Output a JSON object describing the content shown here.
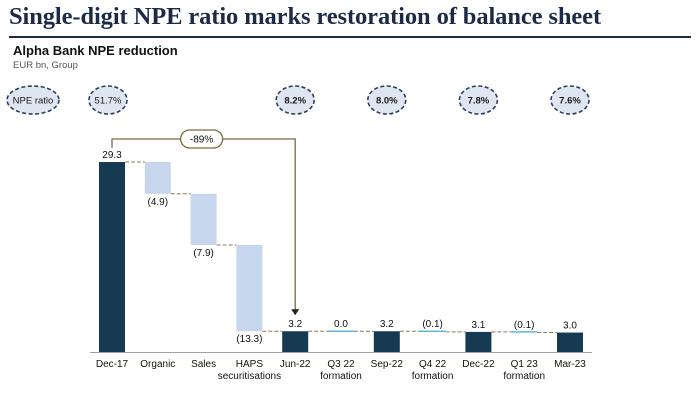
{
  "slide": {
    "title": "Single-digit NPE ratio marks restoration of balance sheet"
  },
  "chart_data": {
    "type": "bar",
    "subtype": "waterfall",
    "title": "Alpha Bank NPE reduction",
    "subtitle": "EUR bn, Group",
    "categories": [
      "Dec-17",
      "Organic",
      "Sales",
      "HAPS securitisations",
      "Jun-22",
      "Q3 22 formation",
      "Sep-22",
      "Q4 22 formation",
      "Dec-22",
      "Q1 23 formation",
      "Mar-23"
    ],
    "category_lines": [
      [
        "Dec-17"
      ],
      [
        "Organic"
      ],
      [
        "Sales"
      ],
      [
        "HAPS",
        "securitisations"
      ],
      [
        "Jun-22"
      ],
      [
        "Q3 22",
        "formation"
      ],
      [
        "Sep-22"
      ],
      [
        "Q4 22",
        "formation"
      ],
      [
        "Dec-22"
      ],
      [
        "Q1 23",
        "formation"
      ],
      [
        "Mar-23"
      ]
    ],
    "values": [
      29.3,
      -4.9,
      -7.9,
      -13.3,
      3.2,
      0.0,
      3.2,
      -0.1,
      3.1,
      -0.1,
      3.0
    ],
    "value_labels": [
      "29.3",
      "(4.9)",
      "(7.9)",
      "(13.3)",
      "3.2",
      "0.0",
      "3.2",
      "(0.1)",
      "3.1",
      "(0.1)",
      "3.0"
    ],
    "bar_kinds": [
      "total",
      "delta",
      "delta",
      "delta",
      "total",
      "delta",
      "total",
      "delta",
      "total",
      "delta",
      "total"
    ],
    "ratio_badges": [
      {
        "label": "NPE ratio",
        "category_index": -1
      },
      {
        "label": "51.7%",
        "category_index": 0
      },
      {
        "label": "8.2%",
        "category_index": 4
      },
      {
        "label": "8.0%",
        "category_index": 6
      },
      {
        "label": "7.8%",
        "category_index": 8
      },
      {
        "label": "7.6%",
        "category_index": 10
      }
    ],
    "reduction_annotation": {
      "label": "-89%",
      "from_index": 0,
      "to_index": 4
    },
    "ylim": [
      0,
      30
    ],
    "grid": false,
    "legend": "none",
    "colors": {
      "total": "#163a52",
      "decrease": "#c6d6ec",
      "formation": "#4fb3d9",
      "title": "#1b2b47",
      "badge_fill": "#dfe6f1",
      "badge_border": "#2a3f5f",
      "annotation": "#7a6b3c",
      "connector": "#8a7a5a"
    }
  }
}
